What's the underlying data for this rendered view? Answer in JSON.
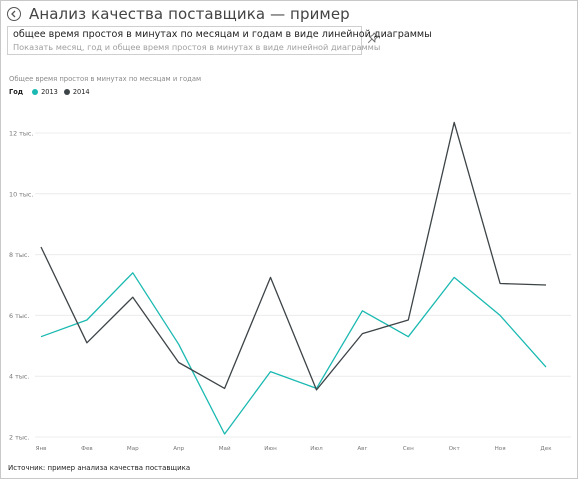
{
  "header": {
    "title": "Анализ качества поставщика — пример"
  },
  "qa": {
    "query": "общее время простоя в минутах по месяцам и годам в виде линейной диаграммы",
    "restatement": "Показать месяц, год и общее время простоя в минутах в виде линейной диаграммы"
  },
  "icons": {
    "back": "back-arrow-circle-icon",
    "pin": "pin-icon"
  },
  "footer": {
    "source": "Источник: пример анализа качества поставщика"
  },
  "chart_data": {
    "type": "line",
    "title": "Общее время простоя в минутах по месяцам и годам",
    "legend_title": "Год",
    "legend_position": "top-left",
    "categories": [
      "Янв",
      "Фев",
      "Мар",
      "Апр",
      "Май",
      "Июн",
      "Июл",
      "Авг",
      "Сен",
      "Окт",
      "Ноя",
      "Дек"
    ],
    "series": [
      {
        "name": "2013",
        "color": "#1ab9b1",
        "values": [
          5300,
          5850,
          7400,
          5050,
          2100,
          4150,
          3600,
          6150,
          5300,
          7250,
          6000,
          4300
        ]
      },
      {
        "name": "2014",
        "color": "#3d4447",
        "values": [
          8250,
          5100,
          6600,
          4450,
          3600,
          7250,
          3550,
          5400,
          5850,
          12350,
          7050,
          7000
        ]
      }
    ],
    "yticks": [
      {
        "value": 2000,
        "label": "2 тыс."
      },
      {
        "value": 4000,
        "label": "4 тыс."
      },
      {
        "value": 6000,
        "label": "6 тыс."
      },
      {
        "value": 8000,
        "label": "8 тыс."
      },
      {
        "value": 10000,
        "label": "10 тыс."
      },
      {
        "value": 12000,
        "label": "12 тыс."
      }
    ],
    "ylim": [
      2000,
      12000
    ],
    "grid": true,
    "xlabel": "",
    "ylabel": ""
  }
}
